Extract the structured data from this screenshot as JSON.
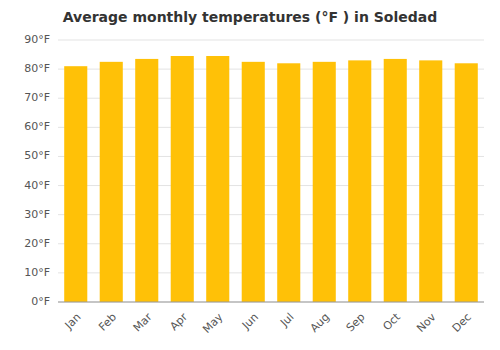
{
  "chart_data": {
    "type": "bar",
    "title": "Average monthly temperatures (°F ) in Soledad",
    "categories": [
      "Jan",
      "Feb",
      "Mar",
      "Apr",
      "May",
      "Jun",
      "Jul",
      "Aug",
      "Sep",
      "Oct",
      "Nov",
      "Dec"
    ],
    "values": [
      81,
      82.5,
      83.5,
      84.5,
      84.5,
      82.5,
      82,
      82.5,
      83,
      83.5,
      83,
      82
    ],
    "color": "#FFC107",
    "ylim": [
      0,
      90
    ],
    "yticks": [
      {
        "value": 0,
        "label": "0°F"
      },
      {
        "value": 10,
        "label": "10°F"
      },
      {
        "value": 20,
        "label": "20°F"
      },
      {
        "value": 30,
        "label": "30°F"
      },
      {
        "value": 40,
        "label": "40°F"
      },
      {
        "value": 50,
        "label": "50°F"
      },
      {
        "value": 60,
        "label": "60°F"
      },
      {
        "value": 70,
        "label": "70°F"
      },
      {
        "value": 80,
        "label": "80°F"
      },
      {
        "value": 90,
        "label": "90°F"
      }
    ],
    "grid": true
  }
}
